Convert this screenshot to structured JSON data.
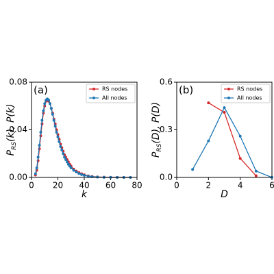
{
  "chart_data": [
    {
      "type": "line",
      "panel_label": "(a)",
      "xlabel": "k",
      "ylabel": [
        "P",
        "RS",
        "(k), P(k)"
      ],
      "x": [
        3,
        4,
        5,
        6,
        7,
        8,
        9,
        10,
        11,
        12,
        13,
        14,
        15,
        16,
        17,
        18,
        19,
        20,
        21,
        22,
        23,
        24,
        25,
        26,
        27,
        28,
        29,
        30,
        32,
        34,
        36,
        38,
        40,
        43,
        46,
        50,
        55,
        60,
        65,
        70,
        75
      ],
      "series": [
        {
          "name": "RS nodes",
          "color": "#d62728",
          "values": [
            0.002,
            0.006,
            0.014,
            0.024,
            0.035,
            0.045,
            0.054,
            0.06,
            0.064,
            0.065,
            0.064,
            0.062,
            0.058,
            0.054,
            0.049,
            0.045,
            0.04,
            0.036,
            0.032,
            0.028,
            0.025,
            0.022,
            0.019,
            0.017,
            0.015,
            0.013,
            0.011,
            0.0095,
            0.007,
            0.0053,
            0.004,
            0.003,
            0.0022,
            0.0013,
            0.0008,
            0.0004,
            0.0002,
            0.0001,
            5e-05,
            2e-05,
            0
          ]
        },
        {
          "name": "All nodes",
          "color": "#1f77b4",
          "values": [
            0.003,
            0.008,
            0.017,
            0.027,
            0.038,
            0.048,
            0.056,
            0.062,
            0.065,
            0.066,
            0.065,
            0.062,
            0.058,
            0.053,
            0.048,
            0.043,
            0.038,
            0.034,
            0.03,
            0.026,
            0.023,
            0.02,
            0.017,
            0.015,
            0.013,
            0.011,
            0.0095,
            0.008,
            0.006,
            0.0045,
            0.0033,
            0.0024,
            0.0017,
            0.001,
            0.0006,
            0.0003,
            0.0001,
            5e-05,
            2e-05,
            1e-05,
            0
          ]
        }
      ],
      "xlim": [
        0,
        80
      ],
      "xticks": [
        0,
        20,
        40,
        60,
        80
      ],
      "ylim": [
        0,
        0.08
      ],
      "yticks": [
        {
          "value": 0,
          "label": "0.00"
        },
        {
          "value": 0.04,
          "label": "0.04"
        },
        {
          "value": 0.08,
          "label": "0.08"
        }
      ],
      "legend": "upper right"
    },
    {
      "type": "line",
      "panel_label": "(b)",
      "xlabel": "D",
      "ylabel": [
        "P",
        "RS",
        "(D), P(D)"
      ],
      "x": [
        1,
        2,
        3,
        4,
        5,
        6
      ],
      "series": [
        {
          "name": "RS nodes",
          "color": "#d62728",
          "values": [
            null,
            0.47,
            0.41,
            0.12,
            0.01,
            null
          ]
        },
        {
          "name": "All nodes",
          "color": "#1f77b4",
          "values": [
            0.05,
            0.23,
            0.44,
            0.26,
            0.04,
            0.0
          ]
        }
      ],
      "xlim": [
        0,
        6
      ],
      "xticks": [
        0,
        2,
        4,
        6
      ],
      "ylim": [
        0,
        0.6
      ],
      "yticks": [
        {
          "value": 0,
          "label": "0.0"
        },
        {
          "value": 0.3,
          "label": "0.3"
        },
        {
          "value": 0.6,
          "label": "0.6"
        }
      ],
      "legend": "upper right"
    }
  ]
}
